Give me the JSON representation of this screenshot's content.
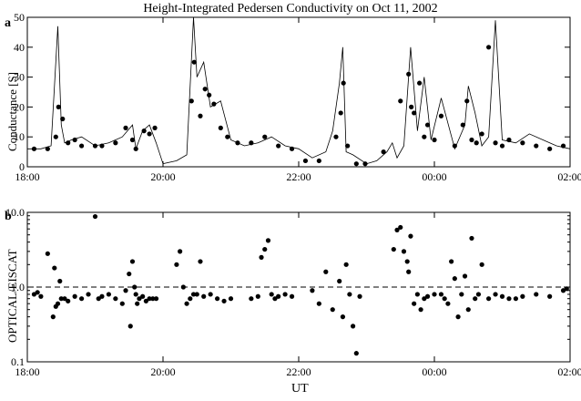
{
  "title": "Height-Integrated Pedersen Conductivity on Oct 11, 2002",
  "chart_data": [
    {
      "panel": "a",
      "type": "line",
      "ylabel": "Conductance [S]",
      "xlabel": "",
      "ylim": [
        0,
        50
      ],
      "yticks": [
        "0",
        "10",
        "20",
        "30",
        "40",
        "50"
      ],
      "xlim_hours": [
        18,
        26
      ],
      "xticks": [
        "18:00",
        "20:00",
        "22:00",
        "00:00",
        "02:00"
      ],
      "line_series": {
        "name": "",
        "x": [
          18.0,
          18.2,
          18.35,
          18.45,
          18.5,
          18.55,
          18.65,
          18.8,
          19.0,
          19.2,
          19.4,
          19.55,
          19.6,
          19.7,
          19.8,
          19.9,
          20.0,
          20.2,
          20.35,
          20.45,
          20.5,
          20.6,
          20.7,
          20.85,
          21.0,
          21.2,
          21.4,
          21.6,
          21.8,
          22.0,
          22.2,
          22.4,
          22.5,
          22.6,
          22.65,
          22.7,
          22.8,
          23.0,
          23.15,
          23.3,
          23.38,
          23.45,
          23.55,
          23.65,
          23.75,
          23.85,
          23.95,
          24.1,
          24.3,
          24.45,
          24.5,
          24.6,
          24.7,
          24.8,
          24.9,
          25.0,
          25.2,
          25.4,
          25.6,
          25.8,
          26.0
        ],
        "y": [
          6,
          6,
          7,
          47,
          14,
          8,
          9,
          10,
          7,
          8,
          10,
          14,
          6,
          12,
          14,
          8,
          1,
          2,
          4,
          50,
          30,
          35,
          20,
          22,
          9,
          7,
          8,
          10,
          7,
          6,
          3,
          5,
          12,
          28,
          40,
          5,
          4,
          1,
          2,
          5,
          8,
          3,
          7,
          40,
          12,
          30,
          9,
          23,
          6,
          14,
          27,
          18,
          7,
          10,
          49,
          9,
          8,
          11,
          9,
          7,
          6
        ]
      },
      "points_series": {
        "name": "",
        "x": [
          18.1,
          18.3,
          18.42,
          18.46,
          18.52,
          18.6,
          18.7,
          18.8,
          19.0,
          19.1,
          19.3,
          19.45,
          19.55,
          19.6,
          19.72,
          19.8,
          19.88,
          20.42,
          20.46,
          20.55,
          20.62,
          20.68,
          20.75,
          20.85,
          20.95,
          21.1,
          21.3,
          21.5,
          21.7,
          21.9,
          22.1,
          22.3,
          22.55,
          22.62,
          22.66,
          22.72,
          22.85,
          22.98,
          23.25,
          23.5,
          23.62,
          23.66,
          23.7,
          23.78,
          23.85,
          23.9,
          24.0,
          24.1,
          24.3,
          24.42,
          24.48,
          24.55,
          24.62,
          24.7,
          24.8,
          24.9,
          25.0,
          25.1,
          25.3,
          25.5,
          25.7,
          25.9
        ],
        "y": [
          6,
          6,
          10,
          20,
          16,
          8,
          9,
          7,
          7,
          7,
          8,
          13,
          9,
          6,
          12,
          11,
          13,
          22,
          35,
          17,
          26,
          24,
          21,
          13,
          10,
          8,
          8,
          10,
          7,
          6,
          2,
          2,
          10,
          18,
          28,
          7,
          1,
          1,
          5,
          22,
          31,
          20,
          18,
          28,
          10,
          14,
          9,
          17,
          7,
          14,
          22,
          9,
          8,
          11,
          40,
          8,
          7,
          9,
          8,
          7,
          6,
          7
        ]
      }
    },
    {
      "panel": "b",
      "type": "scatter",
      "ylabel": "OPTICAL/EISCAT",
      "xlabel": "UT",
      "yscale": "log",
      "ylim": [
        0.1,
        10
      ],
      "yticks": [
        "0.1",
        "1.0",
        "10.0"
      ],
      "reference_line": 1.0,
      "xlim_hours": [
        18,
        26
      ],
      "xticks": [
        "18:00",
        "20:00",
        "22:00",
        "00:00",
        "02:00"
      ],
      "series": [
        {
          "name": "",
          "x": [
            18.1,
            18.15,
            18.2,
            18.3,
            18.38,
            18.4,
            18.42,
            18.45,
            18.48,
            18.5,
            18.55,
            18.6,
            18.7,
            18.8,
            18.9,
            19.0,
            19.05,
            19.1,
            19.2,
            19.3,
            19.4,
            19.45,
            19.5,
            19.52,
            19.55,
            19.58,
            19.6,
            19.62,
            19.65,
            19.7,
            19.75,
            19.8,
            19.85,
            19.9,
            20.2,
            20.25,
            20.3,
            20.35,
            20.4,
            20.45,
            20.5,
            20.55,
            20.6,
            20.7,
            20.8,
            20.9,
            21.0,
            21.3,
            21.4,
            21.45,
            21.5,
            21.55,
            21.6,
            21.65,
            21.7,
            21.8,
            21.9,
            22.2,
            22.3,
            22.4,
            22.5,
            22.6,
            22.65,
            22.7,
            22.75,
            22.8,
            22.85,
            22.9,
            23.4,
            23.45,
            23.5,
            23.55,
            23.6,
            23.62,
            23.65,
            23.7,
            23.75,
            23.8,
            23.85,
            23.9,
            24.0,
            24.1,
            24.15,
            24.2,
            24.25,
            24.3,
            24.35,
            24.4,
            24.45,
            24.5,
            24.55,
            24.6,
            24.65,
            24.7,
            24.8,
            24.9,
            25.0,
            25.1,
            25.2,
            25.3,
            25.5,
            25.7,
            25.9,
            25.95
          ],
          "y": [
            0.8,
            0.85,
            0.75,
            2.8,
            0.4,
            1.8,
            0.55,
            0.6,
            1.2,
            0.7,
            0.7,
            0.65,
            0.75,
            0.7,
            0.8,
            8.8,
            0.7,
            0.75,
            0.8,
            0.7,
            0.6,
            0.9,
            1.5,
            0.3,
            2.2,
            1.0,
            0.8,
            0.6,
            0.7,
            0.75,
            0.65,
            0.7,
            0.7,
            0.7,
            2.0,
            3.0,
            1.0,
            0.6,
            0.7,
            0.8,
            0.8,
            2.2,
            0.75,
            0.8,
            0.7,
            0.65,
            0.7,
            0.7,
            0.75,
            2.5,
            3.2,
            4.2,
            0.8,
            0.7,
            0.75,
            0.8,
            0.75,
            0.9,
            0.6,
            1.6,
            0.5,
            1.2,
            0.4,
            2.0,
            0.8,
            0.3,
            0.13,
            0.75,
            3.2,
            5.8,
            6.3,
            3.0,
            2.2,
            1.6,
            4.8,
            0.6,
            0.8,
            0.5,
            0.7,
            0.75,
            0.8,
            0.8,
            0.7,
            0.6,
            2.2,
            1.3,
            0.4,
            0.8,
            1.4,
            0.5,
            4.5,
            0.7,
            0.8,
            2.0,
            0.7,
            0.8,
            0.75,
            0.7,
            0.7,
            0.75,
            0.8,
            0.75,
            0.9,
            0.95
          ]
        }
      ]
    }
  ],
  "panel_a_label": "a",
  "panel_b_label": "b"
}
